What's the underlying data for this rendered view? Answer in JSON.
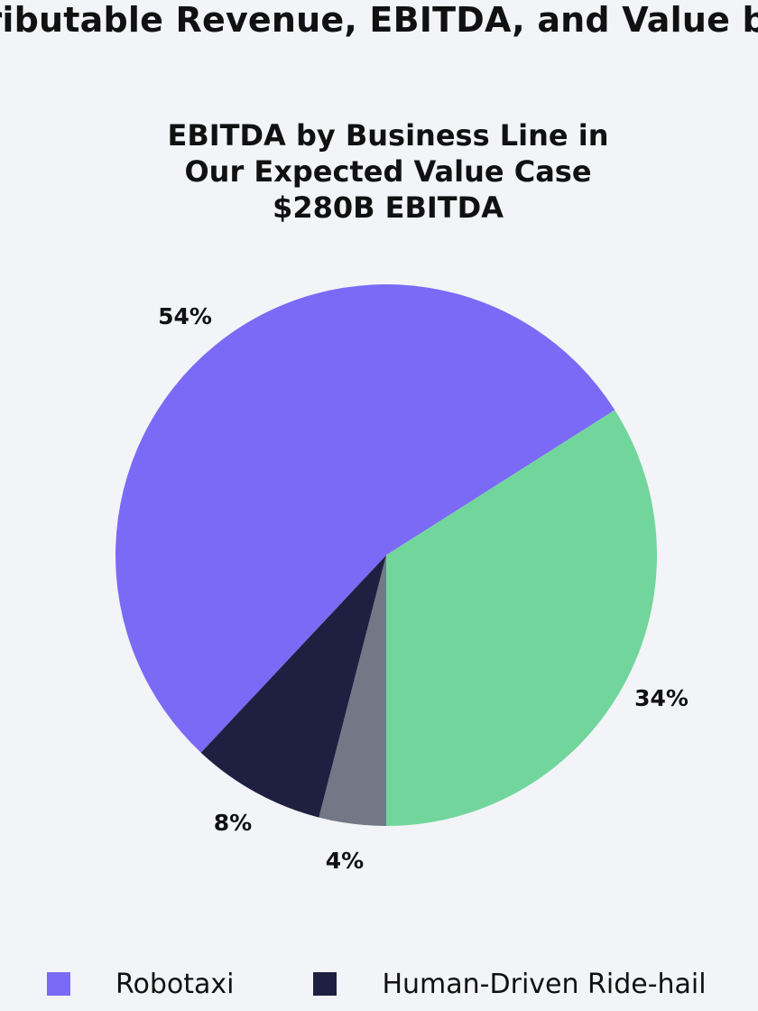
{
  "page": {
    "title": "tributable Revenue, EBITDA, and Value by"
  },
  "chart_data": {
    "type": "pie",
    "title_lines": [
      "EBITDA by Business Line in",
      "Our Expected Value Case",
      "$280B EBITDA"
    ],
    "start_angle_deg": 0,
    "direction": "clockwise",
    "slices": [
      {
        "name": "Robotaxi",
        "value": 54,
        "label": "54%",
        "color": "#7b6af6"
      },
      {
        "name": "Human-Driven Ride-hail",
        "value": 8,
        "label": "8%",
        "color": "#1f2041"
      },
      {
        "name": "",
        "value": 4,
        "label": "4%",
        "color": "#737887"
      },
      {
        "name": "",
        "value": 34,
        "label": "34%",
        "color": "#72d69c"
      }
    ],
    "legend": {
      "placement": "bottom",
      "items": [
        {
          "label": "Robotaxi",
          "color": "#7b6af6"
        },
        {
          "label": "Human-Driven Ride-hail",
          "color": "#1f2041"
        }
      ]
    }
  }
}
